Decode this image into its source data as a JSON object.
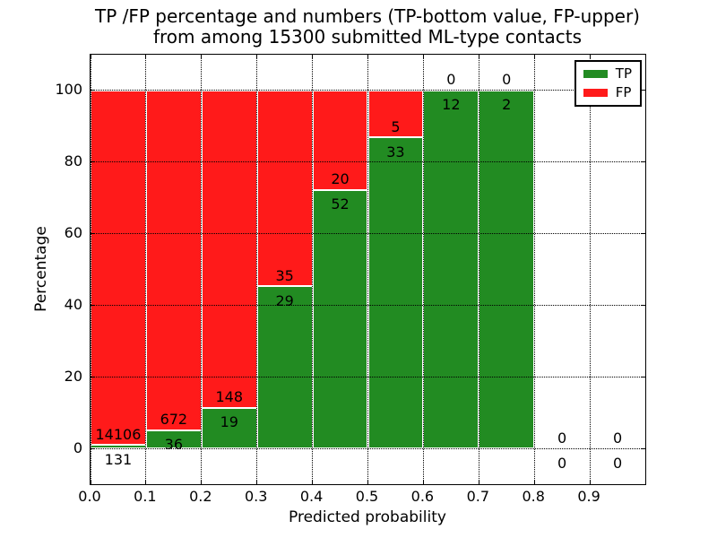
{
  "chart_data": {
    "type": "bar",
    "stacked": true,
    "title_line1": "TP /FP percentage and numbers (TP-bottom value, FP-upper)",
    "title_line2": "from among 15300 submitted ML-type contacts",
    "xlabel": "Predicted probability",
    "ylabel": "Percentage",
    "total_submitted_contacts": 15300,
    "xlim": [
      0.0,
      1.0
    ],
    "ylim": [
      -10,
      110
    ],
    "xticks": [
      "0.0",
      "0.1",
      "0.2",
      "0.3",
      "0.4",
      "0.5",
      "0.6",
      "0.7",
      "0.8",
      "0.9"
    ],
    "yticks": [
      "0",
      "20",
      "40",
      "60",
      "80",
      "100"
    ],
    "grid_style": "dotted",
    "legend_position": "upper-right",
    "legend": [
      {
        "label": "TP",
        "color": "#228b22"
      },
      {
        "label": "FP",
        "color": "#ff1a1a"
      }
    ],
    "bins": [
      {
        "range": [
          0.0,
          0.1
        ],
        "tp": 131,
        "fp": 14106
      },
      {
        "range": [
          0.1,
          0.2
        ],
        "tp": 36,
        "fp": 672
      },
      {
        "range": [
          0.2,
          0.3
        ],
        "tp": 19,
        "fp": 148
      },
      {
        "range": [
          0.3,
          0.4
        ],
        "tp": 29,
        "fp": 35
      },
      {
        "range": [
          0.4,
          0.5
        ],
        "tp": 52,
        "fp": 20
      },
      {
        "range": [
          0.5,
          0.6
        ],
        "tp": 33,
        "fp": 5
      },
      {
        "range": [
          0.6,
          0.7
        ],
        "tp": 12,
        "fp": 0
      },
      {
        "range": [
          0.7,
          0.8
        ],
        "tp": 2,
        "fp": 0
      },
      {
        "range": [
          0.8,
          0.9
        ],
        "tp": 0,
        "fp": 0
      },
      {
        "range": [
          0.9,
          1.0
        ],
        "tp": 0,
        "fp": 0
      }
    ]
  }
}
